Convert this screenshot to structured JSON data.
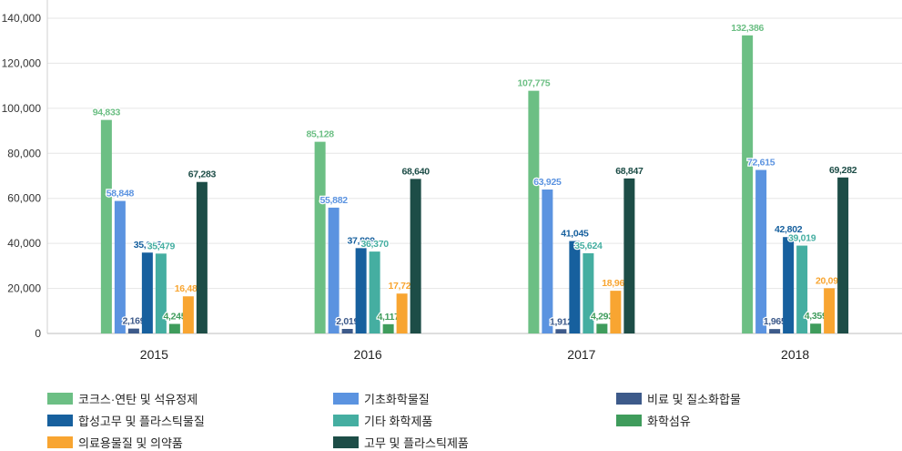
{
  "chart_data": {
    "type": "bar",
    "title": "",
    "xlabel": "",
    "ylabel": "",
    "ylim": [
      0,
      140000
    ],
    "yticks": [
      0,
      20000,
      40000,
      60000,
      80000,
      100000,
      120000,
      140000
    ],
    "ytick_labels": [
      "0",
      "20,000",
      "40,000",
      "60,000",
      "80,000",
      "100,000",
      "120,000",
      "140,000"
    ],
    "grid": true,
    "legend_position": "bottom",
    "categories": [
      "2015",
      "2016",
      "2017",
      "2018"
    ],
    "series": [
      {
        "name": "코크스·연탄 및 석유정제",
        "color": "#6cbf84",
        "values": [
          94833,
          85128,
          107775,
          132386
        ],
        "labels": [
          "94,833",
          "85,128",
          "107,775",
          "132,386"
        ]
      },
      {
        "name": "기초화학물질",
        "color": "#5b93e0",
        "values": [
          58848,
          55882,
          63925,
          72615
        ],
        "labels": [
          "58,848",
          "55,882",
          "63,925",
          "72,615"
        ]
      },
      {
        "name": "비료 및 질소화합물",
        "color": "#3d5a8a",
        "values": [
          2169,
          2019,
          1912,
          1965
        ],
        "labels": [
          "2,169",
          "2,019",
          "1,912",
          "1,965"
        ]
      },
      {
        "name": "합성고무 및 플라스틱물질",
        "color": "#17609e",
        "values": [
          35915,
          37899,
          41045,
          42802
        ],
        "labels": [
          "35,915",
          "37,899",
          "41,045",
          "42,802"
        ]
      },
      {
        "name": "기타 화학제품",
        "color": "#45aea1",
        "values": [
          35479,
          36370,
          35624,
          39019
        ],
        "labels": [
          "35,479",
          "36,370",
          "35,624",
          "39,019"
        ]
      },
      {
        "name": "화학섬유",
        "color": "#3f9c5c",
        "values": [
          4245,
          4117,
          4293,
          4359
        ],
        "labels": [
          "4,245",
          "4,117",
          "4,293",
          "4,359"
        ]
      },
      {
        "name": "의료용물질 및 의약품",
        "color": "#f8a531",
        "values": [
          16489,
          17720,
          18965,
          20095
        ],
        "labels": [
          "16,489",
          "17,720",
          "18,965",
          "20,095"
        ]
      },
      {
        "name": "고무 및 플라스틱제품",
        "color": "#1d4d47",
        "values": [
          67283,
          68640,
          68847,
          69282
        ],
        "labels": [
          "67,283",
          "68,640",
          "68,847",
          "69,282"
        ]
      }
    ]
  }
}
